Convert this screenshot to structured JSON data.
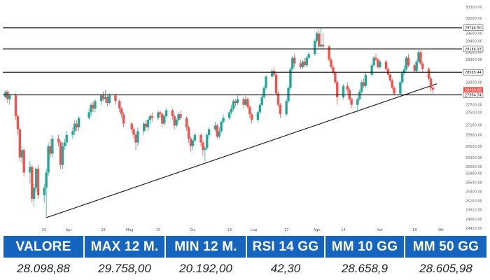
{
  "colors": {
    "up": "#26a69a",
    "down": "#ef5350",
    "header_bg": "#1565c0",
    "line": "#222222",
    "price_tag": "#ef5350"
  },
  "chart_data": {
    "type": "candlestick",
    "ylim": [
      24420,
      30300
    ],
    "y_ticks": [
      24420,
      24660,
      24910,
      25150,
      25400,
      25640,
      25880,
      26060,
      26300,
      26600,
      26900,
      27160,
      27500,
      27700,
      28000,
      28300,
      28600,
      28900,
      29100,
      29400,
      29600,
      29800,
      30000,
      30300
    ],
    "x_ticks": [
      "20",
      "Apr",
      "18",
      "Mag",
      "15",
      "Giu",
      "19",
      "Lug",
      "17",
      "Ago",
      "14",
      "Set",
      "18",
      "Ott"
    ],
    "levels": [
      29746.5,
      29184.93,
      28565.44,
      27964.74
    ],
    "level_labels": [
      "29746.50",
      "29184.93",
      "28565.44",
      "27964.74"
    ],
    "last_price": 28098.88,
    "last_price_label": "28098.88",
    "trendline": {
      "start": {
        "date": "21 Mar",
        "value": 24700
      },
      "end": {
        "date": "29 Set",
        "value": 28260
      }
    },
    "candles": [
      {
        "date": "1 Mar",
        "o": 27900,
        "c": 28050,
        "l": 27850,
        "h": 28100
      },
      {
        "date": "2 Mar",
        "o": 28050,
        "c": 27850,
        "l": 27750,
        "h": 28100
      },
      {
        "date": "3 Mar",
        "o": 27850,
        "c": 27950,
        "l": 27700,
        "h": 28000
      },
      {
        "date": "6 Mar",
        "o": 27950,
        "c": 27400,
        "l": 27300,
        "h": 28000
      },
      {
        "date": "7 Mar",
        "o": 27400,
        "c": 27050,
        "l": 26900,
        "h": 27450
      },
      {
        "date": "8 Mar",
        "o": 27050,
        "c": 26300,
        "l": 26200,
        "h": 27100
      },
      {
        "date": "9 Mar",
        "o": 26300,
        "c": 26500,
        "l": 26150,
        "h": 26600
      },
      {
        "date": "10 Mar",
        "o": 26500,
        "c": 25900,
        "l": 25800,
        "h": 26550
      },
      {
        "date": "13 Mar",
        "o": 25900,
        "c": 26050,
        "l": 25600,
        "h": 26200
      },
      {
        "date": "14 Mar",
        "o": 26050,
        "c": 25200,
        "l": 25100,
        "h": 26100
      },
      {
        "date": "15 Mar",
        "o": 25200,
        "c": 25500,
        "l": 25000,
        "h": 25600
      },
      {
        "date": "16 Mar",
        "o": 25500,
        "c": 26000,
        "l": 25400,
        "h": 26050
      },
      {
        "date": "17 Mar",
        "o": 26000,
        "c": 25300,
        "l": 25200,
        "h": 26100
      },
      {
        "date": "20 Mar",
        "o": 25300,
        "c": 25500,
        "l": 25100,
        "h": 25600
      },
      {
        "date": "21 Mar",
        "o": 25500,
        "c": 25900,
        "l": 24700,
        "h": 26000
      },
      {
        "date": "22 Mar",
        "o": 25900,
        "c": 26600,
        "l": 25800,
        "h": 26700
      },
      {
        "date": "23 Mar",
        "o": 26600,
        "c": 26400,
        "l": 26300,
        "h": 26800
      },
      {
        "date": "24 Mar",
        "o": 26400,
        "c": 26800,
        "l": 26300,
        "h": 26900
      },
      {
        "date": "27 Mar",
        "o": 26800,
        "c": 26700,
        "l": 26600,
        "h": 26900
      },
      {
        "date": "28 Mar",
        "o": 26700,
        "c": 26100,
        "l": 26000,
        "h": 26750
      },
      {
        "date": "29 Mar",
        "o": 26100,
        "c": 26600,
        "l": 26000,
        "h": 26700
      },
      {
        "date": "30 Mar",
        "o": 26600,
        "c": 26700,
        "l": 26500,
        "h": 26800
      },
      {
        "date": "31 Mar",
        "o": 26700,
        "c": 26900,
        "l": 26600,
        "h": 27000
      },
      {
        "date": "3 Apr",
        "o": 26900,
        "c": 27000,
        "l": 26800,
        "h": 27100
      },
      {
        "date": "4 Apr",
        "o": 27000,
        "c": 27200,
        "l": 26900,
        "h": 27300
      },
      {
        "date": "5 Apr",
        "o": 27200,
        "c": 27100,
        "l": 27000,
        "h": 27300
      },
      {
        "date": "6 Apr",
        "o": 27100,
        "c": 27350,
        "l": 27000,
        "h": 27400
      },
      {
        "date": "11 Apr",
        "o": 27350,
        "c": 27500,
        "l": 27300,
        "h": 27600
      },
      {
        "date": "12 Apr",
        "o": 27500,
        "c": 27700,
        "l": 27400,
        "h": 27750
      },
      {
        "date": "13 Apr",
        "o": 27700,
        "c": 27600,
        "l": 27500,
        "h": 27800
      },
      {
        "date": "14 Apr",
        "o": 27600,
        "c": 27800,
        "l": 27500,
        "h": 27850
      },
      {
        "date": "17 Apr",
        "o": 27800,
        "c": 27950,
        "l": 27700,
        "h": 28000
      },
      {
        "date": "18 Apr",
        "o": 27950,
        "c": 27850,
        "l": 27800,
        "h": 28050
      },
      {
        "date": "19 Apr",
        "o": 27850,
        "c": 27900,
        "l": 27750,
        "h": 28100
      },
      {
        "date": "20 Apr",
        "o": 27900,
        "c": 27750,
        "l": 27650,
        "h": 27950
      },
      {
        "date": "21 Apr",
        "o": 27750,
        "c": 27950,
        "l": 27700,
        "h": 28000
      },
      {
        "date": "24 Apr",
        "o": 27950,
        "c": 27800,
        "l": 27700,
        "h": 28000
      },
      {
        "date": "26 Apr",
        "o": 27800,
        "c": 27600,
        "l": 27500,
        "h": 27850
      },
      {
        "date": "27 Apr",
        "o": 27600,
        "c": 27450,
        "l": 27350,
        "h": 27650
      },
      {
        "date": "28 Apr",
        "o": 27450,
        "c": 27200,
        "l": 27100,
        "h": 27500
      },
      {
        "date": "2 Mag",
        "o": 27200,
        "c": 27050,
        "l": 26950,
        "h": 27250
      },
      {
        "date": "3 Mag",
        "o": 27050,
        "c": 26900,
        "l": 26800,
        "h": 27100
      },
      {
        "date": "4 Mag",
        "o": 26900,
        "c": 26700,
        "l": 26500,
        "h": 26950
      },
      {
        "date": "5 Mag",
        "o": 26700,
        "c": 27000,
        "l": 26600,
        "h": 27100
      },
      {
        "date": "8 Mag",
        "o": 27000,
        "c": 27200,
        "l": 26900,
        "h": 27250
      },
      {
        "date": "9 Mag",
        "o": 27200,
        "c": 27100,
        "l": 27000,
        "h": 27300
      },
      {
        "date": "10 Mag",
        "o": 27100,
        "c": 27300,
        "l": 27000,
        "h": 27350
      },
      {
        "date": "11 Mag",
        "o": 27300,
        "c": 27400,
        "l": 27200,
        "h": 27450
      },
      {
        "date": "12 Mag",
        "o": 27400,
        "c": 27350,
        "l": 27250,
        "h": 27500
      },
      {
        "date": "15 Mag",
        "o": 27350,
        "c": 27500,
        "l": 27300,
        "h": 27550
      },
      {
        "date": "16 Mag",
        "o": 27500,
        "c": 27450,
        "l": 27350,
        "h": 27550
      },
      {
        "date": "17 Mag",
        "o": 27450,
        "c": 27200,
        "l": 27100,
        "h": 27500
      },
      {
        "date": "18 Mag",
        "o": 27200,
        "c": 27400,
        "l": 27150,
        "h": 27450
      },
      {
        "date": "19 Mag",
        "o": 27400,
        "c": 27550,
        "l": 27350,
        "h": 27600
      },
      {
        "date": "22 Mag",
        "o": 27550,
        "c": 27400,
        "l": 27300,
        "h": 27600
      },
      {
        "date": "23 Mag",
        "o": 27400,
        "c": 27150,
        "l": 27050,
        "h": 27450
      },
      {
        "date": "24 Mag",
        "o": 27150,
        "c": 27300,
        "l": 27100,
        "h": 27350
      },
      {
        "date": "25 Mag",
        "o": 27300,
        "c": 27450,
        "l": 27250,
        "h": 27500
      },
      {
        "date": "26 Mag",
        "o": 27450,
        "c": 27350,
        "l": 27300,
        "h": 27550
      },
      {
        "date": "29 Mag",
        "o": 27350,
        "c": 27100,
        "l": 27000,
        "h": 27400
      },
      {
        "date": "30 Mag",
        "o": 27100,
        "c": 26800,
        "l": 26700,
        "h": 27150
      },
      {
        "date": "31 Mag",
        "o": 26800,
        "c": 26600,
        "l": 26450,
        "h": 26850
      },
      {
        "date": "1 Giu",
        "o": 26600,
        "c": 26750,
        "l": 26500,
        "h": 26800
      },
      {
        "date": "2 Giu",
        "o": 26750,
        "c": 26900,
        "l": 26700,
        "h": 26950
      },
      {
        "date": "5 Giu",
        "o": 26900,
        "c": 26700,
        "l": 26600,
        "h": 26950
      },
      {
        "date": "6 Giu",
        "o": 26700,
        "c": 26500,
        "l": 26350,
        "h": 26750
      },
      {
        "date": "7 Giu",
        "o": 26500,
        "c": 26550,
        "l": 26200,
        "h": 26600
      },
      {
        "date": "8 Giu",
        "o": 26550,
        "c": 26900,
        "l": 26500,
        "h": 26950
      },
      {
        "date": "9 Giu",
        "o": 26900,
        "c": 27050,
        "l": 26850,
        "h": 27100
      },
      {
        "date": "12 Giu",
        "o": 27050,
        "c": 27150,
        "l": 27000,
        "h": 27250
      },
      {
        "date": "13 Giu",
        "o": 27150,
        "c": 26850,
        "l": 26800,
        "h": 27200
      },
      {
        "date": "14 Giu",
        "o": 26850,
        "c": 27000,
        "l": 26800,
        "h": 27100
      },
      {
        "date": "15 Giu",
        "o": 27000,
        "c": 27250,
        "l": 26950,
        "h": 27300
      },
      {
        "date": "16 Giu",
        "o": 27250,
        "c": 27350,
        "l": 27200,
        "h": 27450
      },
      {
        "date": "19 Giu",
        "o": 27350,
        "c": 27500,
        "l": 27300,
        "h": 27550
      },
      {
        "date": "20 Giu",
        "o": 27500,
        "c": 27600,
        "l": 27450,
        "h": 27700
      },
      {
        "date": "21 Giu",
        "o": 27600,
        "c": 27800,
        "l": 27550,
        "h": 27850
      },
      {
        "date": "22 Giu",
        "o": 27800,
        "c": 27750,
        "l": 27650,
        "h": 27850
      },
      {
        "date": "23 Giu",
        "o": 27750,
        "c": 27850,
        "l": 27700,
        "h": 27950
      },
      {
        "date": "26 Giu",
        "o": 27850,
        "c": 27700,
        "l": 27600,
        "h": 27900
      },
      {
        "date": "27 Giu",
        "o": 27700,
        "c": 27850,
        "l": 27650,
        "h": 27950
      },
      {
        "date": "28 Giu",
        "o": 27850,
        "c": 27650,
        "l": 27600,
        "h": 27900
      },
      {
        "date": "29 Giu",
        "o": 27650,
        "c": 27450,
        "l": 27350,
        "h": 27700
      },
      {
        "date": "30 Giu",
        "o": 27450,
        "c": 27300,
        "l": 27200,
        "h": 27500
      },
      {
        "date": "3 Lug",
        "o": 27300,
        "c": 27500,
        "l": 27250,
        "h": 27550
      },
      {
        "date": "4 Lug",
        "o": 27500,
        "c": 27700,
        "l": 27450,
        "h": 27750
      },
      {
        "date": "5 Lug",
        "o": 27700,
        "c": 27900,
        "l": 27650,
        "h": 27950
      },
      {
        "date": "6 Lug",
        "o": 27900,
        "c": 28150,
        "l": 27850,
        "h": 28200
      },
      {
        "date": "7 Lug",
        "o": 28150,
        "c": 28450,
        "l": 28100,
        "h": 28500
      },
      {
        "date": "10 Lug",
        "o": 28450,
        "c": 28600,
        "l": 28400,
        "h": 28650
      },
      {
        "date": "11 Lug",
        "o": 28600,
        "c": 28500,
        "l": 28450,
        "h": 28700
      },
      {
        "date": "12 Lug",
        "o": 28500,
        "c": 28000,
        "l": 27950,
        "h": 28550
      },
      {
        "date": "13 Lug",
        "o": 28000,
        "c": 27700,
        "l": 27650,
        "h": 28050
      },
      {
        "date": "14 Lug",
        "o": 27700,
        "c": 27450,
        "l": 27350,
        "h": 27750
      },
      {
        "date": "17 Lug",
        "o": 27450,
        "c": 27800,
        "l": 27400,
        "h": 27850
      },
      {
        "date": "18 Lug",
        "o": 27800,
        "c": 28150,
        "l": 27750,
        "h": 28200
      },
      {
        "date": "19 Lug",
        "o": 28150,
        "c": 28650,
        "l": 28100,
        "h": 28700
      },
      {
        "date": "20 Lug",
        "o": 28650,
        "c": 28950,
        "l": 28600,
        "h": 29000
      },
      {
        "date": "21 Lug",
        "o": 28950,
        "c": 28800,
        "l": 28700,
        "h": 29050
      },
      {
        "date": "24 Lug",
        "o": 28800,
        "c": 28700,
        "l": 28650,
        "h": 28900
      },
      {
        "date": "25 Lug",
        "o": 28700,
        "c": 28850,
        "l": 28650,
        "h": 28900
      },
      {
        "date": "26 Lug",
        "o": 28850,
        "c": 28750,
        "l": 28700,
        "h": 28950
      },
      {
        "date": "27 Lug",
        "o": 28750,
        "c": 28950,
        "l": 28700,
        "h": 29000
      },
      {
        "date": "28 Lug",
        "o": 28950,
        "c": 29050,
        "l": 28900,
        "h": 29100
      },
      {
        "date": "31 Lug",
        "o": 29050,
        "c": 29400,
        "l": 29000,
        "h": 29450
      },
      {
        "date": "1 Ago",
        "o": 29400,
        "c": 29600,
        "l": 29350,
        "h": 29650
      },
      {
        "date": "2 Ago",
        "o": 29600,
        "c": 29250,
        "l": 29200,
        "h": 29700
      },
      {
        "date": "3 Ago",
        "o": 29250,
        "c": 29300,
        "l": 29200,
        "h": 29758
      },
      {
        "date": "4 Ago",
        "o": 29300,
        "c": 29250,
        "l": 29150,
        "h": 29600
      },
      {
        "date": "7 Ago",
        "o": 29250,
        "c": 28900,
        "l": 28850,
        "h": 29300
      },
      {
        "date": "8 Ago",
        "o": 28900,
        "c": 28700,
        "l": 28650,
        "h": 28950
      },
      {
        "date": "9 Ago",
        "o": 28700,
        "c": 28550,
        "l": 28500,
        "h": 28750
      },
      {
        "date": "10 Ago",
        "o": 28550,
        "c": 28300,
        "l": 28250,
        "h": 28600
      },
      {
        "date": "11 Ago",
        "o": 28300,
        "c": 27900,
        "l": 27700,
        "h": 28350
      },
      {
        "date": "14 Ago",
        "o": 27900,
        "c": 28200,
        "l": 27850,
        "h": 28250
      },
      {
        "date": "16 Ago",
        "o": 28200,
        "c": 28100,
        "l": 28000,
        "h": 28300
      },
      {
        "date": "17 Ago",
        "o": 28100,
        "c": 27850,
        "l": 27800,
        "h": 28150
      },
      {
        "date": "18 Ago",
        "o": 27850,
        "c": 27700,
        "l": 27600,
        "h": 27900
      },
      {
        "date": "21 Ago",
        "o": 27700,
        "c": 27850,
        "l": 27500,
        "h": 27900
      },
      {
        "date": "22 Ago",
        "o": 27850,
        "c": 28050,
        "l": 27800,
        "h": 28100
      },
      {
        "date": "23 Ago",
        "o": 28050,
        "c": 28300,
        "l": 28000,
        "h": 28350
      },
      {
        "date": "24 Ago",
        "o": 28300,
        "c": 28200,
        "l": 28150,
        "h": 28400
      },
      {
        "date": "25 Ago",
        "o": 28200,
        "c": 28500,
        "l": 28150,
        "h": 28550
      },
      {
        "date": "28 Ago",
        "o": 28500,
        "c": 28750,
        "l": 28450,
        "h": 28800
      },
      {
        "date": "29 Ago",
        "o": 28750,
        "c": 28950,
        "l": 28700,
        "h": 29000
      },
      {
        "date": "30 Ago",
        "o": 28950,
        "c": 28900,
        "l": 28850,
        "h": 29050
      },
      {
        "date": "31 Ago",
        "o": 28900,
        "c": 28700,
        "l": 28650,
        "h": 28950
      },
      {
        "date": "1 Set",
        "o": 28700,
        "c": 28850,
        "l": 28650,
        "h": 28900
      },
      {
        "date": "4 Set",
        "o": 28850,
        "c": 28650,
        "l": 28600,
        "h": 28900
      },
      {
        "date": "5 Set",
        "o": 28650,
        "c": 28500,
        "l": 28450,
        "h": 28700
      },
      {
        "date": "6 Set",
        "o": 28500,
        "c": 28350,
        "l": 28300,
        "h": 28550
      },
      {
        "date": "7 Set",
        "o": 28350,
        "c": 28150,
        "l": 28100,
        "h": 28400
      },
      {
        "date": "8 Set",
        "o": 28150,
        "c": 28000,
        "l": 27950,
        "h": 28200
      },
      {
        "date": "11 Set",
        "o": 28000,
        "c": 28300,
        "l": 27950,
        "h": 28350
      },
      {
        "date": "12 Set",
        "o": 28300,
        "c": 28550,
        "l": 28250,
        "h": 28600
      },
      {
        "date": "13 Set",
        "o": 28550,
        "c": 28650,
        "l": 28500,
        "h": 28750
      },
      {
        "date": "14 Set",
        "o": 28650,
        "c": 28950,
        "l": 28600,
        "h": 29000
      },
      {
        "date": "15 Set",
        "o": 28950,
        "c": 28750,
        "l": 28700,
        "h": 29050
      },
      {
        "date": "18 Set",
        "o": 28750,
        "c": 28600,
        "l": 28550,
        "h": 28800
      },
      {
        "date": "19 Set",
        "o": 28600,
        "c": 28850,
        "l": 28550,
        "h": 28900
      },
      {
        "date": "20 Set",
        "o": 28850,
        "c": 29100,
        "l": 28800,
        "h": 29150
      },
      {
        "date": "21 Set",
        "o": 29100,
        "c": 28800,
        "l": 28750,
        "h": 29150
      },
      {
        "date": "22 Set",
        "o": 28800,
        "c": 28650,
        "l": 28550,
        "h": 28850
      },
      {
        "date": "25 Set",
        "o": 28650,
        "c": 28400,
        "l": 28350,
        "h": 28700
      },
      {
        "date": "26 Set",
        "o": 28400,
        "c": 28150,
        "l": 28050,
        "h": 28450
      },
      {
        "date": "27 Set",
        "o": 28150,
        "c": 28100,
        "l": 28000,
        "h": 28250
      }
    ]
  },
  "stats": {
    "headers": [
      "VALORE",
      "MAX 12 M.",
      "MIN 12 M.",
      "RSI 14 GG",
      "MM 10 GG",
      "MM 50 GG"
    ],
    "values": [
      "28.098,88",
      "29.758,00",
      "20.192,00",
      "42,30",
      "28.658,9",
      "28.605,98"
    ]
  }
}
